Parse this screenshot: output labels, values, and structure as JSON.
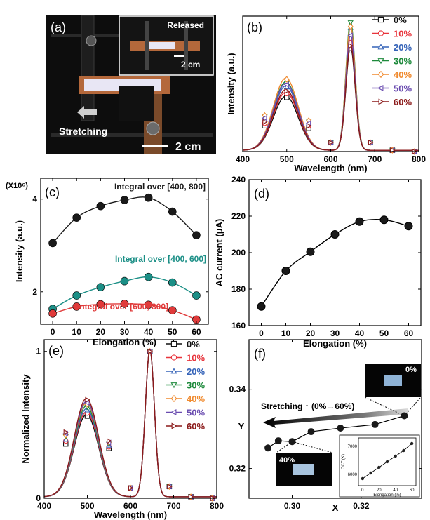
{
  "colors": {
    "s0": "#111111",
    "s10": "#e8343c",
    "s20": "#3563b8",
    "s30": "#1e8a3c",
    "s40": "#f08a2e",
    "s50": "#6a4cb0",
    "s60": "#8b1a1a",
    "c_black": "#1a1a1a",
    "c_teal": "#1b8f86",
    "c_red": "#e03a3a",
    "photo_bg": "#0d0d0d",
    "strip": "#e8e6f4",
    "copper": "#b4683b",
    "strip_glow": "#a8c4de"
  },
  "panel_a": {
    "label": "(a)",
    "released_label": "Released",
    "inset_scale": "2 cm",
    "stretching_label": "Stretching",
    "scale": "2 cm"
  },
  "panel_f_photos": {
    "top_label": "0%",
    "bottom_label": "40%"
  },
  "chart_data": [
    {
      "panel": "(b)",
      "type": "line",
      "xlabel": "Wavelength (nm)",
      "ylabel": "Intensity (a.u.)",
      "xlim": [
        400,
        800
      ],
      "xticks": [
        400,
        500,
        600,
        700,
        800
      ],
      "ylim": [
        0,
        1.05
      ],
      "yticks": [],
      "legend": "top-right",
      "grid": false,
      "series": [
        {
          "name": "0%",
          "marker": "square",
          "x": [
            450,
            500,
            550,
            600,
            645,
            690,
            740,
            790
          ],
          "y": [
            0.2,
            0.42,
            0.18,
            0.07,
            0.8,
            0.07,
            0.01,
            0.0
          ]
        },
        {
          "name": "10%",
          "marker": "circle",
          "x": [
            450,
            500,
            550,
            600,
            645,
            690,
            740,
            790
          ],
          "y": [
            0.22,
            0.45,
            0.2,
            0.07,
            0.88,
            0.07,
            0.01,
            0.0
          ]
        },
        {
          "name": "20%",
          "marker": "triangle-up",
          "x": [
            450,
            500,
            550,
            600,
            645,
            690,
            740,
            790
          ],
          "y": [
            0.25,
            0.5,
            0.22,
            0.07,
            0.96,
            0.07,
            0.01,
            0.0
          ]
        },
        {
          "name": "30%",
          "marker": "triangle-down",
          "x": [
            450,
            500,
            550,
            600,
            645,
            690,
            740,
            790
          ],
          "y": [
            0.27,
            0.53,
            0.23,
            0.07,
            1.0,
            0.07,
            0.01,
            0.0
          ]
        },
        {
          "name": "40%",
          "marker": "diamond",
          "x": [
            450,
            500,
            550,
            600,
            645,
            690,
            740,
            790
          ],
          "y": [
            0.28,
            0.56,
            0.24,
            0.07,
            0.97,
            0.07,
            0.01,
            0.0
          ]
        },
        {
          "name": "50%",
          "marker": "triangle-left",
          "x": [
            450,
            500,
            550,
            600,
            645,
            690,
            740,
            790
          ],
          "y": [
            0.26,
            0.52,
            0.22,
            0.07,
            0.9,
            0.07,
            0.01,
            0.0
          ]
        },
        {
          "name": "60%",
          "marker": "triangle-right",
          "x": [
            450,
            500,
            550,
            600,
            645,
            690,
            740,
            790
          ],
          "y": [
            0.23,
            0.47,
            0.2,
            0.07,
            0.82,
            0.07,
            0.01,
            0.0
          ]
        }
      ]
    },
    {
      "panel": "(c)",
      "type": "line",
      "xlabel": "Elongation (%)",
      "ylabel": "Intensity (a.u.)",
      "multiplier_label": "(X10⁶)",
      "xlim": [
        -5,
        65
      ],
      "xticks": [
        0,
        10,
        20,
        30,
        40,
        50,
        60
      ],
      "ylim": [
        1.3,
        4.45
      ],
      "yticks": [
        2,
        4
      ],
      "series": [
        {
          "name": "Integral over [400, 800]",
          "x": [
            0,
            10,
            20,
            30,
            40,
            50,
            60
          ],
          "y": [
            3.05,
            3.6,
            3.85,
            3.98,
            4.03,
            3.73,
            3.22
          ]
        },
        {
          "name": "Integral over [400, 600]",
          "x": [
            0,
            10,
            20,
            30,
            40,
            50,
            60
          ],
          "y": [
            1.63,
            1.92,
            2.1,
            2.23,
            2.32,
            2.2,
            1.92
          ]
        },
        {
          "name": "Integral over [600, 800]",
          "x": [
            0,
            10,
            20,
            30,
            40,
            50,
            60
          ],
          "y": [
            1.53,
            1.68,
            1.73,
            1.74,
            1.72,
            1.6,
            1.4
          ]
        }
      ]
    },
    {
      "panel": "(d)",
      "type": "line",
      "xlabel": "Elongation (%)",
      "ylabel": "AC current (μA)",
      "xlim": [
        -5,
        65
      ],
      "xticks": [
        0,
        10,
        20,
        30,
        40,
        50,
        60
      ],
      "ylim": [
        160,
        240
      ],
      "yticks": [
        160,
        180,
        200,
        220,
        240
      ],
      "series": [
        {
          "name": "",
          "x": [
            0,
            10,
            20,
            30,
            40,
            50,
            60
          ],
          "y": [
            170.5,
            190.0,
            200.5,
            210.0,
            217.0,
            218.0,
            214.5
          ]
        }
      ]
    },
    {
      "panel": "(e)",
      "type": "line",
      "xlabel": "Wavelength (nm)",
      "ylabel": "Normalized Intensity",
      "xlim": [
        400,
        800
      ],
      "xticks": [
        400,
        500,
        600,
        700,
        800
      ],
      "ylim": [
        0,
        1.08
      ],
      "yticks": [
        0,
        1
      ],
      "legend": "top-right",
      "series": [
        {
          "name": "0%",
          "marker": "square",
          "x": [
            450,
            500,
            550,
            600,
            645,
            690,
            740,
            790
          ],
          "y": [
            0.37,
            0.56,
            0.34,
            0.07,
            1.0,
            0.08,
            0.01,
            0.0
          ]
        },
        {
          "name": "10%",
          "marker": "circle",
          "x": [
            450,
            500,
            550,
            600,
            645,
            690,
            740,
            790
          ],
          "y": [
            0.39,
            0.58,
            0.35,
            0.07,
            1.0,
            0.08,
            0.01,
            0.0
          ]
        },
        {
          "name": "20%",
          "marker": "triangle-up",
          "x": [
            450,
            500,
            550,
            600,
            645,
            690,
            740,
            790
          ],
          "y": [
            0.4,
            0.6,
            0.36,
            0.07,
            1.0,
            0.08,
            0.01,
            0.0
          ]
        },
        {
          "name": "30%",
          "marker": "triangle-down",
          "x": [
            450,
            500,
            550,
            600,
            645,
            690,
            740,
            790
          ],
          "y": [
            0.42,
            0.62,
            0.37,
            0.07,
            1.0,
            0.08,
            0.01,
            0.0
          ]
        },
        {
          "name": "40%",
          "marker": "diamond",
          "x": [
            450,
            500,
            550,
            600,
            645,
            690,
            740,
            790
          ],
          "y": [
            0.43,
            0.64,
            0.38,
            0.07,
            1.0,
            0.08,
            0.01,
            0.0
          ]
        },
        {
          "name": "50%",
          "marker": "triangle-left",
          "x": [
            450,
            500,
            550,
            600,
            645,
            690,
            740,
            790
          ],
          "y": [
            0.44,
            0.65,
            0.38,
            0.07,
            1.0,
            0.08,
            0.01,
            0.0
          ]
        },
        {
          "name": "60%",
          "marker": "triangle-right",
          "x": [
            450,
            500,
            550,
            600,
            645,
            690,
            740,
            790
          ],
          "y": [
            0.45,
            0.67,
            0.39,
            0.07,
            1.0,
            0.08,
            0.01,
            0.0
          ]
        }
      ]
    },
    {
      "panel": "(f)",
      "type": "scatter",
      "xlabel": "X",
      "ylabel": "Y",
      "xlim": [
        0.2875,
        0.3375
      ],
      "xticks": [
        0.3,
        0.32
      ],
      "ylim": [
        0.3125,
        0.3525
      ],
      "yticks": [
        0.32,
        0.34
      ],
      "annotation": "Stretching ↑ (0%→60%)",
      "series": [
        {
          "name": "",
          "x": [
            0.293,
            0.296,
            0.3,
            0.3055,
            0.314,
            0.324,
            0.3325
          ],
          "y": [
            0.3252,
            0.327,
            0.3268,
            0.3293,
            0.3302,
            0.3311,
            0.3333
          ]
        }
      ],
      "inset": {
        "type": "line",
        "xlabel": "Elongation (%)",
        "ylabel": "CCT (K)",
        "xticks": [
          0,
          20,
          40,
          60
        ],
        "yticks": [
          6000,
          7000
        ],
        "x": [
          0,
          10,
          20,
          30,
          40,
          50,
          60
        ],
        "y": [
          5850,
          6050,
          6250,
          6450,
          6650,
          6850,
          7100
        ]
      }
    }
  ]
}
